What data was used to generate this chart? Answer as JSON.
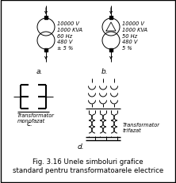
{
  "background_color": "#ffffff",
  "border_color": "#000000",
  "border_linewidth": 1.0,
  "fig_width": 2.22,
  "fig_height": 2.32,
  "caption_line1": "Fig. 3.16 Unele simboluri grafice",
  "caption_line2": "standard pentru transformatoarele electrice",
  "caption_fontsize": 6.2,
  "text_a_specs": "10000 V\n1000 KVA\n60 Hz\n480 V\n± 5 %",
  "text_b_specs": "10000 V\n1000 KVA\n50 Hz\n480 V\n5 %",
  "label_a": "a.",
  "label_b": "b.",
  "label_c": "c.",
  "label_d": "d.",
  "label_monofazat": "Transformator\nmonofazat",
  "label_trifazat": "Transformator\ntrifazat"
}
